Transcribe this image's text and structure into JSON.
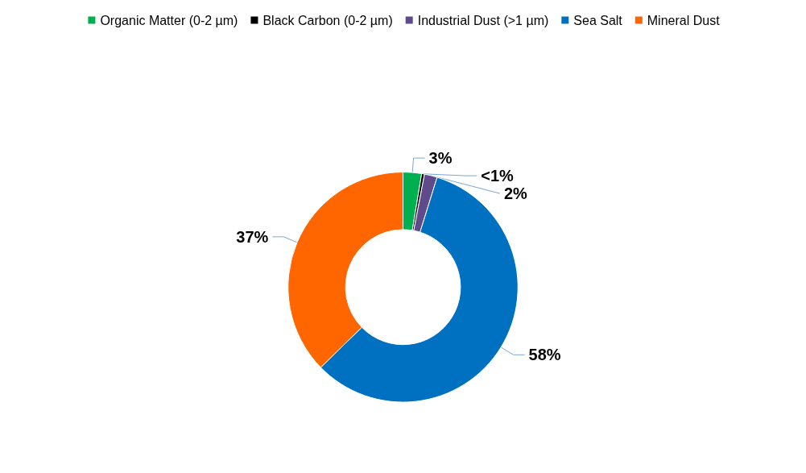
{
  "chart_data": {
    "type": "donut",
    "categories": [
      "Organic Matter (0-2 µm)",
      "Black Carbon (0-2 µm)",
      "Industrial Dust (>1 µm)",
      "Sea Salt",
      "Mineral Dust"
    ],
    "values": [
      2.6,
      0.4,
      1.8,
      57.9,
      37.3
    ],
    "value_labels": [
      "3%",
      "<1%",
      "2%",
      "58%",
      "37%"
    ],
    "colors": [
      "#00b050",
      "#000000",
      "#5f4b8b",
      "#0070c0",
      "#ff6600"
    ],
    "legend": "top"
  }
}
